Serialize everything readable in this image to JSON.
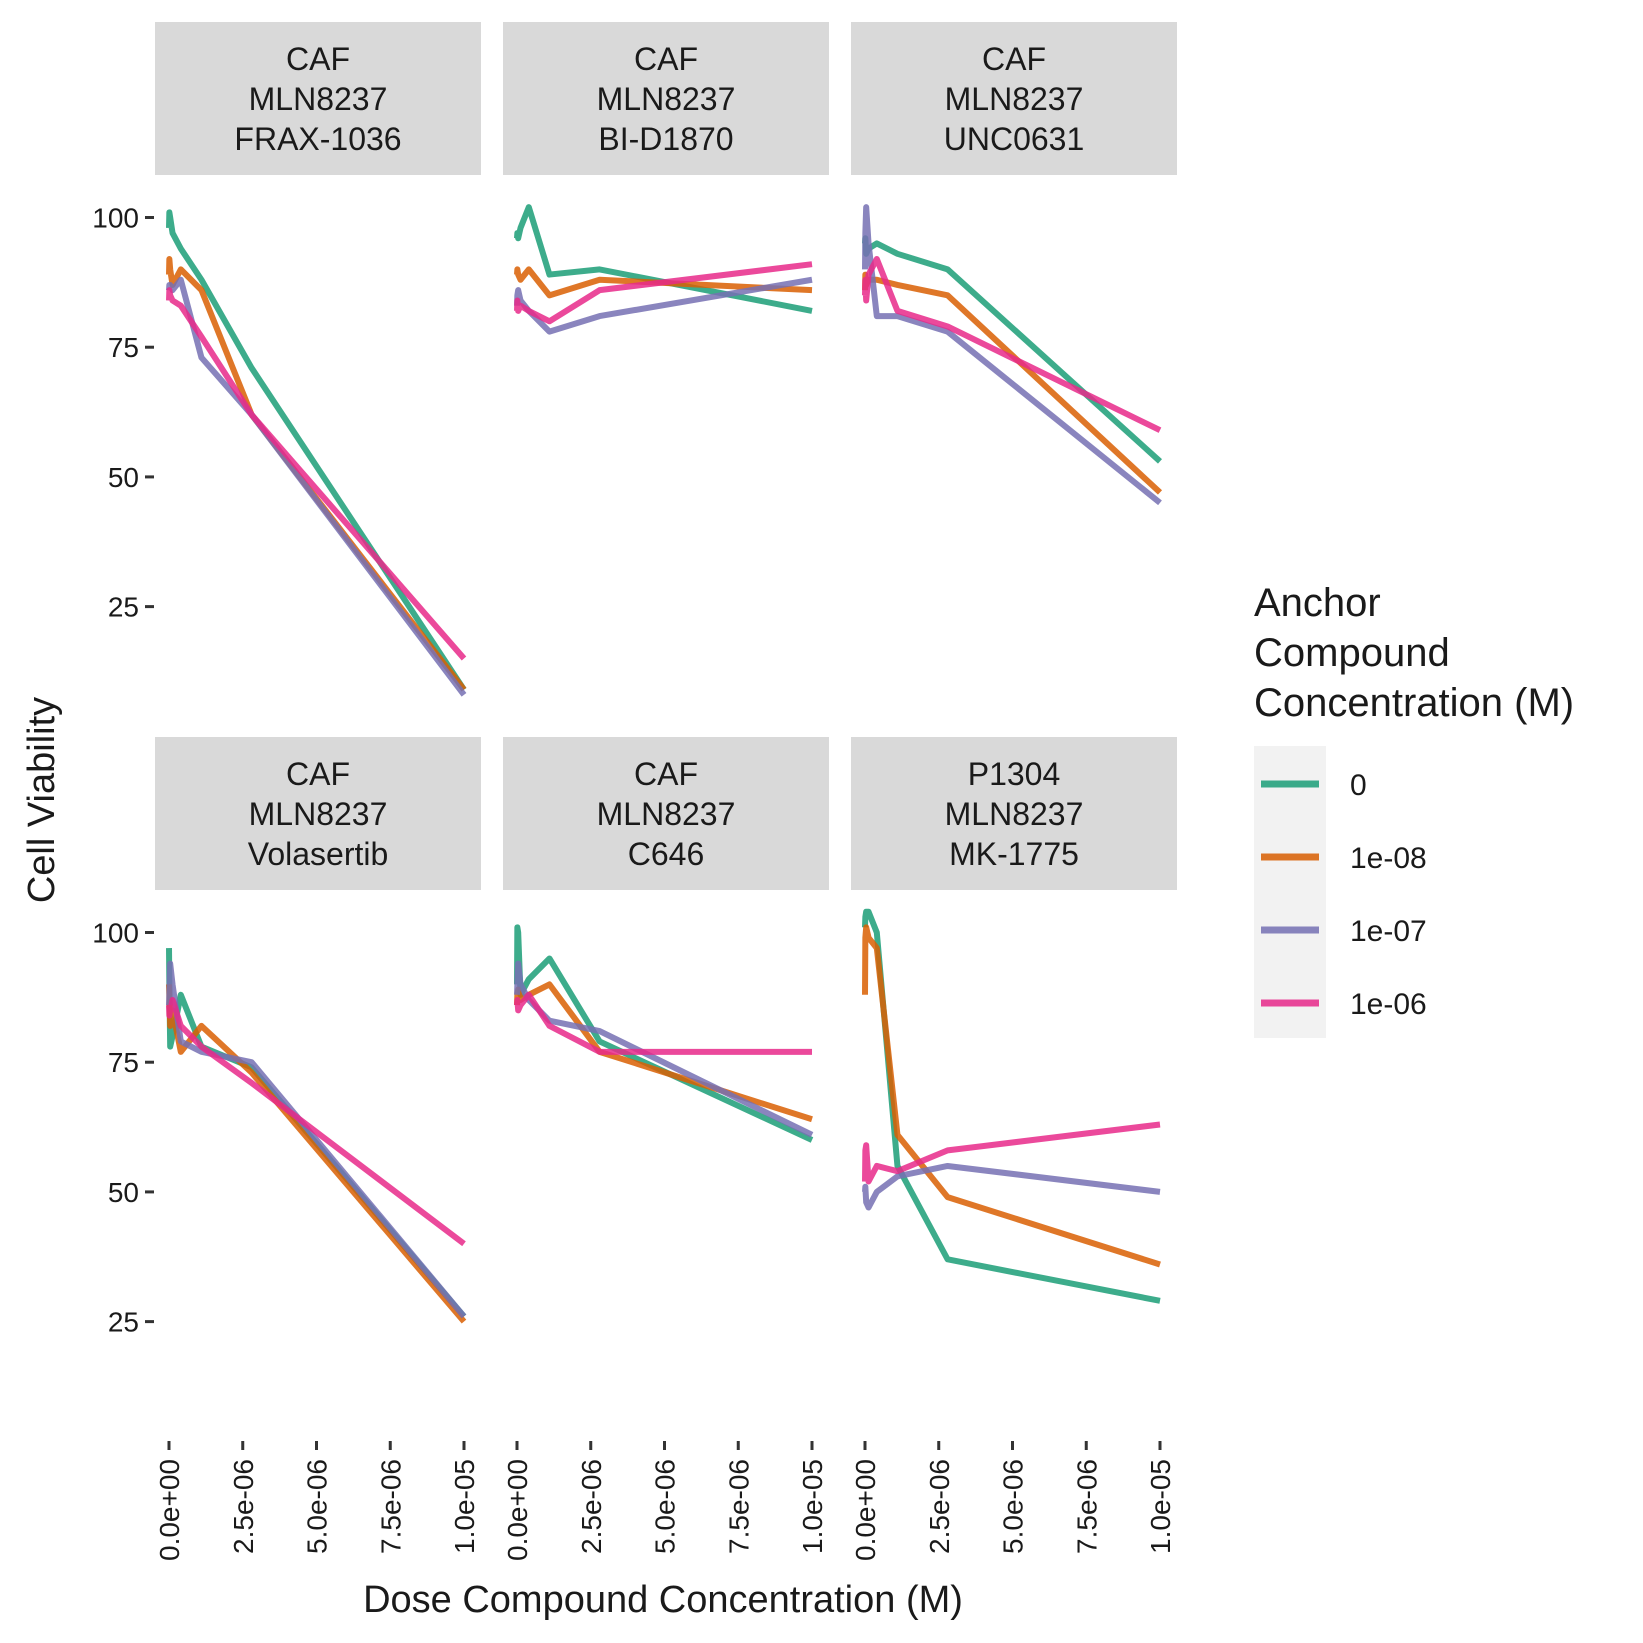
{
  "chart_data": {
    "type": "line",
    "title": "",
    "xlabel": "Dose Compound Concentration (M)",
    "ylabel": "Cell Viability",
    "xlim": [
      0,
      1e-05
    ],
    "ylim": [
      7,
      108
    ],
    "x_ticks": [
      0,
      2.5e-06,
      5e-06,
      7.5e-06,
      1e-05
    ],
    "x_tick_labels": [
      "0.0e+00",
      "2.5e-06",
      "5.0e-06",
      "7.5e-06",
      "1.0e-05"
    ],
    "y_ticks": [
      25,
      50,
      75,
      100
    ],
    "y_tick_labels": [
      "25",
      "50",
      "75",
      "100"
    ],
    "grid": false,
    "legend": {
      "title": [
        "Anchor",
        "Compound",
        "Concentration (M)"
      ],
      "placement": "right",
      "entries": [
        {
          "label": "0",
          "color": "#1b9e77"
        },
        {
          "label": "1e-08",
          "color": "#d95f02"
        },
        {
          "label": "1e-07",
          "color": "#7570b3"
        },
        {
          "label": "1e-06",
          "color": "#e7298a"
        }
      ]
    },
    "panels": [
      {
        "strip": [
          "CAF",
          "MLN8237",
          "FRAX-1036"
        ],
        "series": [
          {
            "name": "0",
            "x": [
              0,
              1.2e-08,
              4e-08,
              1.2e-07,
              4e-07,
              1.1e-06,
              2.8e-06,
              1e-05
            ],
            "y": [
              98,
              101,
              100,
              97,
              94,
              88,
              71,
              9
            ]
          },
          {
            "name": "1e-08",
            "x": [
              0,
              1.2e-08,
              4e-08,
              1.2e-07,
              4e-07,
              1.1e-06,
              2.8e-06,
              1e-05
            ],
            "y": [
              89,
              92,
              90,
              87,
              90,
              86,
              62,
              9
            ]
          },
          {
            "name": "1e-07",
            "x": [
              0,
              1.2e-08,
              4e-08,
              1.2e-07,
              4e-07,
              1.1e-06,
              2.8e-06,
              1e-05
            ],
            "y": [
              86,
              87,
              87,
              86,
              88,
              73,
              62,
              8
            ]
          },
          {
            "name": "1e-06",
            "x": [
              0,
              1.2e-08,
              4e-08,
              1.2e-07,
              4e-07,
              1.1e-06,
              2.8e-06,
              1e-05
            ],
            "y": [
              84,
              86,
              85,
              84,
              83,
              77,
              62,
              15
            ]
          }
        ]
      },
      {
        "strip": [
          "CAF",
          "MLN8237",
          "BI-D1870"
        ],
        "series": [
          {
            "name": "0",
            "x": [
              0,
              1.2e-08,
              4e-08,
              1.2e-07,
              4e-07,
              1.1e-06,
              2.8e-06,
              1e-05
            ],
            "y": [
              96,
              97,
              96,
              98,
              102,
              89,
              90,
              82
            ]
          },
          {
            "name": "1e-08",
            "x": [
              0,
              1.2e-08,
              4e-08,
              1.2e-07,
              4e-07,
              1.1e-06,
              2.8e-06,
              1e-05
            ],
            "y": [
              89,
              90,
              89,
              88,
              90,
              85,
              88,
              86
            ]
          },
          {
            "name": "1e-07",
            "x": [
              0,
              1.2e-08,
              4e-08,
              1.2e-07,
              4e-07,
              1.1e-06,
              2.8e-06,
              1e-05
            ],
            "y": [
              83,
              85,
              86,
              84,
              82,
              78,
              81,
              88
            ]
          },
          {
            "name": "1e-06",
            "x": [
              0,
              1.2e-08,
              4e-08,
              1.2e-07,
              4e-07,
              1.1e-06,
              2.8e-06,
              1e-05
            ],
            "y": [
              82,
              84,
              82,
              83,
              82,
              80,
              86,
              91
            ]
          }
        ]
      },
      {
        "strip": [
          "CAF",
          "MLN8237",
          "UNC0631"
        ],
        "series": [
          {
            "name": "0",
            "x": [
              0,
              1.2e-08,
              4e-08,
              1.2e-07,
              4e-07,
              1.1e-06,
              2.8e-06,
              1e-05
            ],
            "y": [
              95,
              96,
              93,
              94,
              95,
              93,
              90,
              53
            ]
          },
          {
            "name": "1e-08",
            "x": [
              0,
              1.2e-08,
              4e-08,
              1.2e-07,
              4e-07,
              1.1e-06,
              2.8e-06,
              1e-05
            ],
            "y": [
              86,
              89,
              87,
              88,
              88,
              87,
              85,
              47
            ]
          },
          {
            "name": "1e-07",
            "x": [
              0,
              1.2e-08,
              4e-08,
              1.2e-07,
              4e-07,
              1.1e-06,
              2.8e-06,
              1e-05
            ],
            "y": [
              90,
              97,
              102,
              95,
              81,
              81,
              78,
              45
            ]
          },
          {
            "name": "1e-06",
            "x": [
              0,
              1.2e-08,
              4e-08,
              1.2e-07,
              4e-07,
              1.1e-06,
              2.8e-06,
              1e-05
            ],
            "y": [
              85,
              88,
              84,
              89,
              92,
              82,
              79,
              59
            ]
          }
        ]
      },
      {
        "strip": [
          "CAF",
          "MLN8237",
          "Volasertib"
        ],
        "series": [
          {
            "name": "0",
            "x": [
              0,
              1.2e-08,
              4e-08,
              1.2e-07,
              4e-07,
              1.1e-06,
              2.8e-06,
              1e-05
            ],
            "y": [
              97,
              90,
              78,
              80,
              88,
              78,
              74,
              26
            ]
          },
          {
            "name": "1e-08",
            "x": [
              0,
              1.2e-08,
              4e-08,
              1.2e-07,
              4e-07,
              1.1e-06,
              2.8e-06,
              1e-05
            ],
            "y": [
              90,
              88,
              82,
              85,
              77,
              82,
              73,
              25
            ]
          },
          {
            "name": "1e-07",
            "x": [
              0,
              1.2e-08,
              4e-08,
              1.2e-07,
              4e-07,
              1.1e-06,
              2.8e-06,
              1e-05
            ],
            "y": [
              86,
              88,
              94,
              90,
              79,
              77,
              75,
              26
            ]
          },
          {
            "name": "1e-06",
            "x": [
              0,
              1.2e-08,
              4e-08,
              1.2e-07,
              4e-07,
              1.1e-06,
              2.8e-06,
              1e-05
            ],
            "y": [
              86,
              84,
              85,
              87,
              82,
              78,
              71,
              40
            ]
          }
        ]
      },
      {
        "strip": [
          "CAF",
          "MLN8237",
          "C646"
        ],
        "series": [
          {
            "name": "0",
            "x": [
              0,
              1.2e-08,
              4e-08,
              1.2e-07,
              4e-07,
              1.1e-06,
              2.8e-06,
              1e-05
            ],
            "y": [
              90,
              101,
              100,
              88,
              91,
              95,
              79,
              60
            ]
          },
          {
            "name": "1e-08",
            "x": [
              0,
              1.2e-08,
              4e-08,
              1.2e-07,
              4e-07,
              1.1e-06,
              2.8e-06,
              1e-05
            ],
            "y": [
              86,
              88,
              89,
              87,
              88,
              90,
              77,
              64
            ]
          },
          {
            "name": "1e-07",
            "x": [
              0,
              1.2e-08,
              4e-08,
              1.2e-07,
              4e-07,
              1.1e-06,
              2.8e-06,
              1e-05
            ],
            "y": [
              88,
              90,
              94,
              90,
              87,
              83,
              81,
              61
            ]
          },
          {
            "name": "1e-06",
            "x": [
              0,
              1.2e-08,
              4e-08,
              1.2e-07,
              4e-07,
              1.1e-06,
              2.8e-06,
              1e-05
            ],
            "y": [
              86,
              87,
              85,
              86,
              88,
              82,
              77,
              77
            ]
          }
        ]
      },
      {
        "strip": [
          "P1304",
          "MLN8237",
          "MK-1775"
        ],
        "series": [
          {
            "name": "0",
            "x": [
              0,
              1.2e-08,
              4e-08,
              1.2e-07,
              4e-07,
              1.1e-06,
              2.8e-06,
              1e-05
            ],
            "y": [
              101,
              103,
              104,
              104,
              100,
              55,
              37,
              29
            ]
          },
          {
            "name": "1e-08",
            "x": [
              0,
              1.2e-08,
              4e-08,
              1.2e-07,
              4e-07,
              1.1e-06,
              2.8e-06,
              1e-05
            ],
            "y": [
              88,
              99,
              101,
              99,
              97,
              61,
              49,
              36
            ]
          },
          {
            "name": "1e-07",
            "x": [
              0,
              1.2e-08,
              4e-08,
              1.2e-07,
              4e-07,
              1.1e-06,
              2.8e-06,
              1e-05
            ],
            "y": [
              50,
              51,
              48,
              47,
              50,
              53,
              55,
              50
            ]
          },
          {
            "name": "1e-06",
            "x": [
              0,
              1.2e-08,
              4e-08,
              1.2e-07,
              4e-07,
              1.1e-06,
              2.8e-06,
              1e-05
            ],
            "y": [
              52,
              58,
              59,
              52,
              55,
              54,
              58,
              63
            ]
          }
        ]
      }
    ]
  }
}
